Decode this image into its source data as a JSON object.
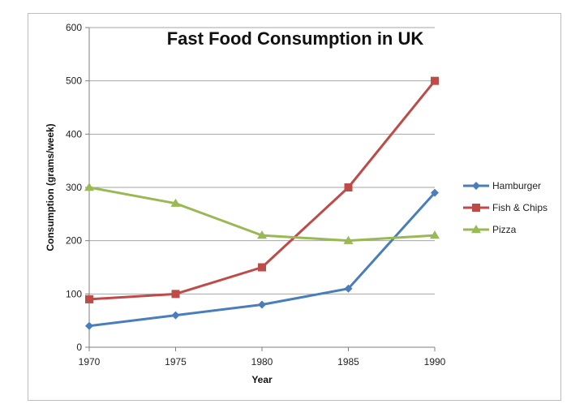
{
  "chart_data": {
    "type": "line",
    "title": "Fast Food Consumption in UK",
    "xlabel": "Year",
    "ylabel": "Consumption  (grams/week)",
    "categories": [
      "1970",
      "1975",
      "1980",
      "1985",
      "1990"
    ],
    "ylim": [
      0,
      600
    ],
    "yticks": [
      "0",
      "100",
      "200",
      "300",
      "400",
      "500",
      "600"
    ],
    "grid": true,
    "legend_position": "right",
    "series": [
      {
        "name": "Hamburger",
        "values": [
          40,
          60,
          80,
          110,
          290
        ],
        "color": "#4a7ebb",
        "marker": "diamond"
      },
      {
        "name": "Fish & Chips",
        "values": [
          90,
          100,
          150,
          300,
          500
        ],
        "color": "#be4b48",
        "marker": "square"
      },
      {
        "name": "Pizza",
        "values": [
          300,
          270,
          210,
          200,
          210
        ],
        "color": "#98b954",
        "marker": "triangle"
      }
    ]
  }
}
